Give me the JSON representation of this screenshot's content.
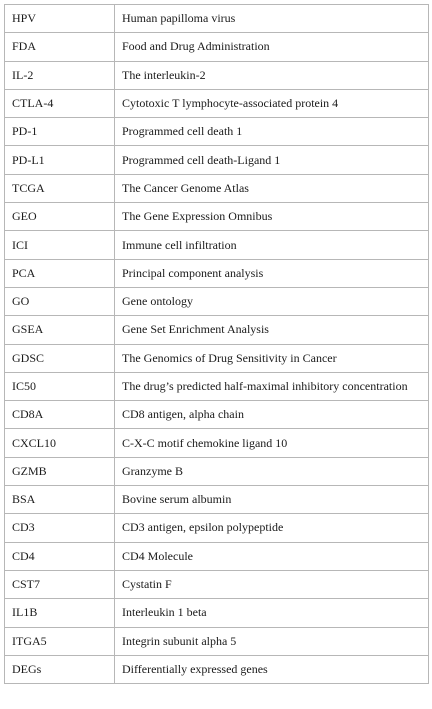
{
  "table": {
    "rows": [
      {
        "abbr": "HPV",
        "definition": "Human papilloma virus"
      },
      {
        "abbr": "FDA",
        "definition": "Food and Drug Administration"
      },
      {
        "abbr": "IL-2",
        "definition": "The interleukin-2"
      },
      {
        "abbr": "CTLA-4",
        "definition": "Cytotoxic T lymphocyte-associated protein 4"
      },
      {
        "abbr": "PD-1",
        "definition": "Programmed cell death 1"
      },
      {
        "abbr": "PD-L1",
        "definition": "Programmed cell death-Ligand 1"
      },
      {
        "abbr": "TCGA",
        "definition": "The Cancer Genome Atlas"
      },
      {
        "abbr": "GEO",
        "definition": "The Gene Expression Omnibus"
      },
      {
        "abbr": "ICI",
        "definition": "Immune cell infiltration"
      },
      {
        "abbr": "PCA",
        "definition": "Principal component analysis"
      },
      {
        "abbr": "GO",
        "definition": "Gene ontology"
      },
      {
        "abbr": "GSEA",
        "definition": "Gene Set Enrichment Analysis"
      },
      {
        "abbr": "GDSC",
        "definition": "The Genomics of Drug Sensitivity in Cancer"
      },
      {
        "abbr": "IC50",
        "definition": "The drug’s predicted half-maximal inhibitory concentration"
      },
      {
        "abbr": "CD8A",
        "definition": "CD8 antigen, alpha chain"
      },
      {
        "abbr": "CXCL10",
        "definition": "C-X-C motif chemokine ligand 10"
      },
      {
        "abbr": "GZMB",
        "definition": "Granzyme B"
      },
      {
        "abbr": "BSA",
        "definition": "Bovine serum albumin"
      },
      {
        "abbr": "CD3",
        "definition": "CD3 antigen, epsilon polypeptide"
      },
      {
        "abbr": "CD4",
        "definition": "CD4 Molecule"
      },
      {
        "abbr": "CST7",
        "definition": "Cystatin F"
      },
      {
        "abbr": "IL1B",
        "definition": "Interleukin 1 beta"
      },
      {
        "abbr": "ITGA5",
        "definition": "Integrin subunit alpha 5"
      },
      {
        "abbr": "DEGs",
        "definition": "Differentially expressed genes"
      }
    ]
  }
}
